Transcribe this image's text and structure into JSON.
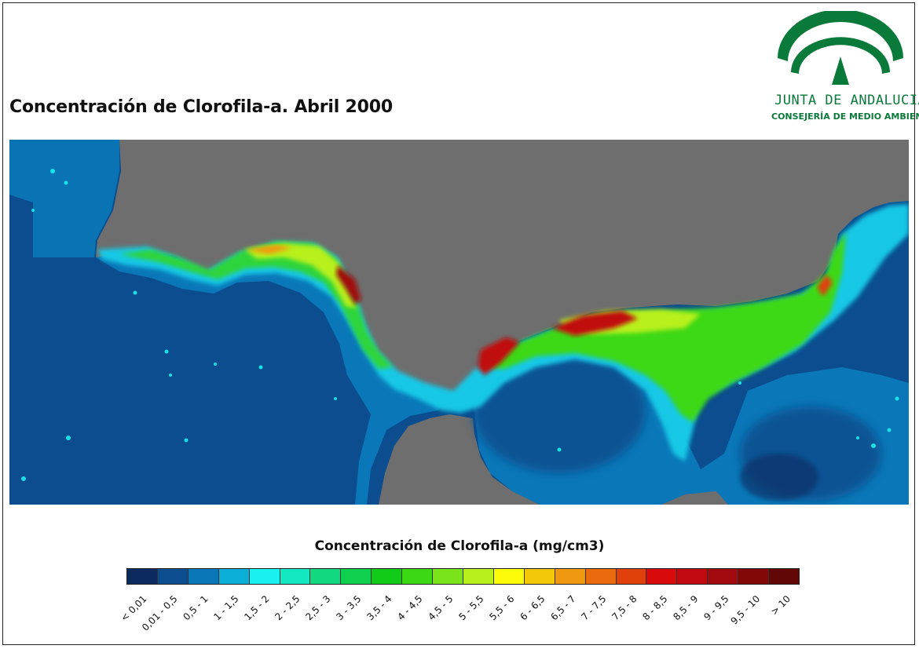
{
  "title": "Concentración de Clorofila-a. Abril 2000",
  "logo": {
    "name": "JUNTA DE ANDALUCIA",
    "department": "CONSEJERÍA DE MEDIO AMBIENTE",
    "color": "#0a7a3a"
  },
  "map": {
    "land_color": "#6e6e6e",
    "ocean_color": "#0a4d8c"
  },
  "legend": {
    "title": "Concentración de Clorofila-a (mg/cm3)",
    "classes": [
      {
        "label": "< 0,01",
        "color": "#0d2a5e"
      },
      {
        "label": "0,01 - 0,5",
        "color": "#0b4d8e"
      },
      {
        "label": "0,5 - 1",
        "color": "#0a78b8"
      },
      {
        "label": "1 - 1,5",
        "color": "#0aaed6"
      },
      {
        "label": "1,5 - 2",
        "color": "#19f0f0"
      },
      {
        "label": "2 - 2,5",
        "color": "#14e8c0"
      },
      {
        "label": "2,5 - 3",
        "color": "#12d880"
      },
      {
        "label": "3 - 3,5",
        "color": "#0ecf4e"
      },
      {
        "label": "3,5 - 4",
        "color": "#10cc18"
      },
      {
        "label": "4 - 4,5",
        "color": "#3dd814"
      },
      {
        "label": "4,5 - 5",
        "color": "#7ae41a"
      },
      {
        "label": "5 - 5,5",
        "color": "#b8f01e"
      },
      {
        "label": "5,5 - 6",
        "color": "#fcfc0a"
      },
      {
        "label": "6 - 6,5",
        "color": "#f4c80a"
      },
      {
        "label": "6,5 - 7",
        "color": "#f09810"
      },
      {
        "label": "7 - 7,5",
        "color": "#ea6a0e"
      },
      {
        "label": "7,5 - 8",
        "color": "#e0400c"
      },
      {
        "label": "8 - 8,5",
        "color": "#d80a0a"
      },
      {
        "label": "8,5 - 9",
        "color": "#c00a10"
      },
      {
        "label": "9 - 9,5",
        "color": "#a00a0e"
      },
      {
        "label": "9,5 - 10",
        "color": "#820808"
      },
      {
        "label": "> 10",
        "color": "#620606"
      }
    ]
  }
}
